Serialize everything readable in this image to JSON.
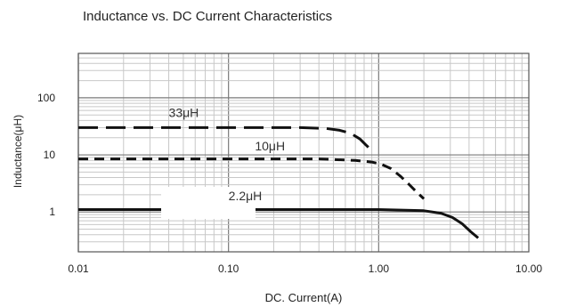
{
  "chart_data": {
    "type": "line",
    "title": "Inductance vs. DC Current Characteristics",
    "xlabel": "DC. Current(A)",
    "ylabel": "Inductance(μH)",
    "x_scale": "log",
    "y_scale": "log",
    "xlim": [
      0.01,
      10
    ],
    "ylim": [
      0.2,
      600
    ],
    "x_ticks": [
      {
        "value": 0.01,
        "label": "0.01"
      },
      {
        "value": 0.1,
        "label": "0.10"
      },
      {
        "value": 1,
        "label": "1.00"
      },
      {
        "value": 10,
        "label": "10.00"
      }
    ],
    "y_ticks": [
      {
        "value": 100,
        "label": "100"
      },
      {
        "value": 10,
        "label": "10"
      },
      {
        "value": 1,
        "label": "1"
      }
    ],
    "grid": true,
    "series": [
      {
        "name": "33μH",
        "line_style": "long-dash",
        "color": "#111111",
        "label_at": [
          0.04,
          46
        ],
        "points": [
          [
            0.01,
            30
          ],
          [
            0.1,
            30
          ],
          [
            0.3,
            30
          ],
          [
            0.45,
            29
          ],
          [
            0.55,
            27
          ],
          [
            0.65,
            24
          ],
          [
            0.75,
            19
          ],
          [
            0.82,
            15
          ],
          [
            0.9,
            12
          ]
        ]
      },
      {
        "name": "10μH",
        "line_style": "short-dash",
        "color": "#111111",
        "label_at": [
          0.15,
          12
        ],
        "points": [
          [
            0.01,
            8.5
          ],
          [
            0.1,
            8.5
          ],
          [
            0.4,
            8.5
          ],
          [
            0.7,
            8.0
          ],
          [
            0.9,
            7.5
          ],
          [
            1.05,
            6.8
          ],
          [
            1.2,
            5.8
          ],
          [
            1.4,
            4.2
          ],
          [
            1.6,
            3.0
          ],
          [
            1.8,
            2.2
          ],
          [
            2.0,
            1.7
          ]
        ]
      },
      {
        "name": "2.2μH",
        "line_style": "solid",
        "color": "#111111",
        "label_at": [
          0.1,
          1.6
        ],
        "points": [
          [
            0.01,
            1.1
          ],
          [
            0.1,
            1.1
          ],
          [
            1.0,
            1.1
          ],
          [
            2.0,
            1.05
          ],
          [
            2.6,
            0.95
          ],
          [
            3.1,
            0.8
          ],
          [
            3.6,
            0.62
          ],
          [
            4.1,
            0.45
          ],
          [
            4.6,
            0.35
          ]
        ]
      }
    ],
    "colors": {
      "major_grid": "#7a7a7a",
      "minor_grid": "#c8c8c8",
      "frame": "#555555"
    }
  }
}
